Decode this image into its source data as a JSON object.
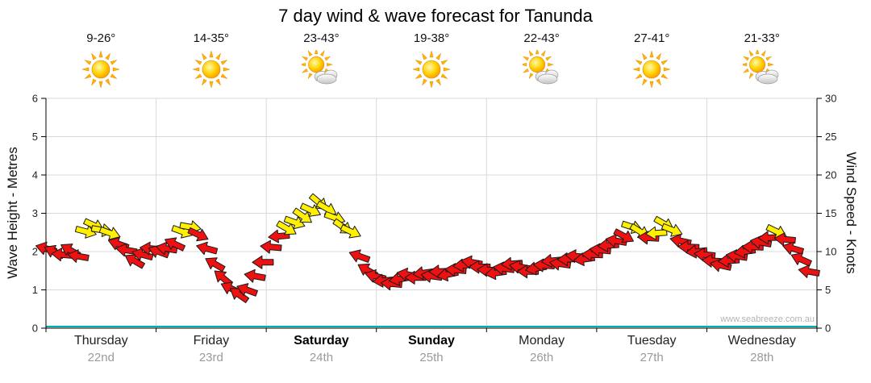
{
  "title": "7 day wind & wave forecast for Tanunda",
  "watermark": "www.seabreeze.com.au",
  "axes": {
    "left_label": "Wave Height - Metres",
    "right_label": "Wind Speed - Knots",
    "left_ticks": [
      0,
      1,
      2,
      3,
      4,
      5,
      6
    ],
    "right_ticks": [
      0,
      5,
      10,
      15,
      20,
      25,
      30
    ]
  },
  "days": [
    {
      "name": "Thursday",
      "date": "22nd",
      "temp": "9-26°",
      "icon": "sun",
      "bold": false
    },
    {
      "name": "Friday",
      "date": "23rd",
      "temp": "14-35°",
      "icon": "sun",
      "bold": false
    },
    {
      "name": "Saturday",
      "date": "24th",
      "temp": "23-43°",
      "icon": "sun-cloud",
      "bold": true
    },
    {
      "name": "Sunday",
      "date": "25th",
      "temp": "19-38°",
      "icon": "sun",
      "bold": true
    },
    {
      "name": "Monday",
      "date": "26th",
      "temp": "22-43°",
      "icon": "sun-cloud",
      "bold": false
    },
    {
      "name": "Tuesday",
      "date": "27th",
      "temp": "27-41°",
      "icon": "sun",
      "bold": false
    },
    {
      "name": "Wednesday",
      "date": "28th",
      "temp": "21-33°",
      "icon": "sun-cloud",
      "bold": false
    }
  ],
  "chart_data": {
    "type": "wind-arrows",
    "title": "7 day wind & wave forecast for Tanunda",
    "x_hours_step": 1.75,
    "x_range_hours": [
      0,
      168
    ],
    "wave_ylim": [
      0,
      6
    ],
    "wind_ylim": [
      0,
      30
    ],
    "yellow_threshold_knots": 12.3,
    "colors": {
      "low": "#ee1111",
      "high": "#fff000",
      "outline": "#1a1a1a",
      "grid": "#d9d9d9",
      "axis": "#000000",
      "baseline": "#00b0b0"
    },
    "knots": [
      10.4,
      10.0,
      9.6,
      10.2,
      9.4,
      12.6,
      13.4,
      12.8,
      12.4,
      11.0,
      10.2,
      8.8,
      9.6,
      10.4,
      10.0,
      10.4,
      11.0,
      12.6,
      13.2,
      12.2,
      10.4,
      8.4,
      6.6,
      5.2,
      4.4,
      5.0,
      6.8,
      8.6,
      10.6,
      12.0,
      13.0,
      13.8,
      14.6,
      15.4,
      16.4,
      15.6,
      14.4,
      13.2,
      12.6,
      9.4,
      7.6,
      6.8,
      6.2,
      5.8,
      6.4,
      7.0,
      6.6,
      7.2,
      6.8,
      7.4,
      7.0,
      7.6,
      8.2,
      8.6,
      8.0,
      7.6,
      7.2,
      7.8,
      8.4,
      8.0,
      7.4,
      7.8,
      8.2,
      8.8,
      8.4,
      9.0,
      9.4,
      9.0,
      9.6,
      10.2,
      10.8,
      11.4,
      12.0,
      13.2,
      12.6,
      11.8,
      12.4,
      13.6,
      12.8,
      11.4,
      10.6,
      10.0,
      9.6,
      8.8,
      8.2,
      8.8,
      9.4,
      10.0,
      10.6,
      11.2,
      11.8,
      12.6,
      11.6,
      10.4,
      9.0,
      7.4
    ],
    "dir_deg": [
      195,
      205,
      185,
      210,
      190,
      15,
      25,
      10,
      20,
      200,
      190,
      210,
      195,
      185,
      200,
      190,
      205,
      20,
      10,
      25,
      195,
      210,
      220,
      205,
      215,
      200,
      190,
      180,
      185,
      175,
      30,
      20,
      35,
      25,
      40,
      30,
      20,
      35,
      25,
      200,
      210,
      195,
      175,
      185,
      170,
      190,
      180,
      172,
      188,
      178,
      168,
      185,
      175,
      190,
      180,
      182,
      172,
      188,
      176,
      190,
      180,
      170,
      184,
      174,
      188,
      178,
      186,
      172,
      182,
      186,
      176,
      190,
      28,
      18,
      32,
      184,
      176,
      30,
      22,
      192,
      182,
      174,
      186,
      184,
      192,
      176,
      188,
      172,
      182,
      190,
      178,
      26,
      186,
      196,
      204,
      190
    ]
  }
}
